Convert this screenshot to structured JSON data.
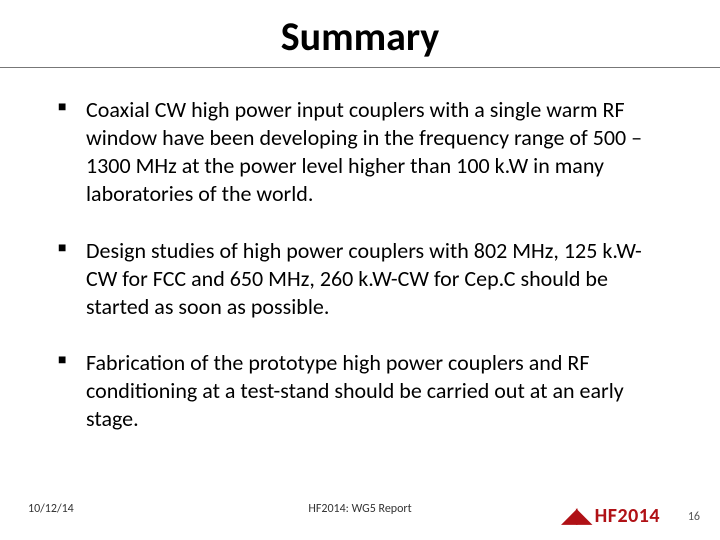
{
  "title": "Summary",
  "bullets": [
    "Coaxial CW high power input couplers with a single warm RF window have been developing in the frequency range of 500 – 1300 MHz at the power level higher than 100 k.W in many laboratories of the world.",
    "Design studies of high power couplers with 802 MHz, 125 k.W-CW for FCC and 650 MHz, 260 k.W-CW for Cep.C should be started as soon as possible.",
    "Fabrication of the prototype high power couplers and RF conditioning at a test-stand should be carried out at an early stage."
  ],
  "footer": {
    "date": "10/12/14",
    "center": "HF2014: WG5 Report",
    "logo_text": "HF2014",
    "page": "16"
  },
  "colors": {
    "logo": "#b01116",
    "rule": "#777777",
    "text": "#000000"
  },
  "fonts": {
    "title_size_pt": 30,
    "body_size_pt": 17,
    "footer_size_pt": 9,
    "family": "Calibri"
  }
}
